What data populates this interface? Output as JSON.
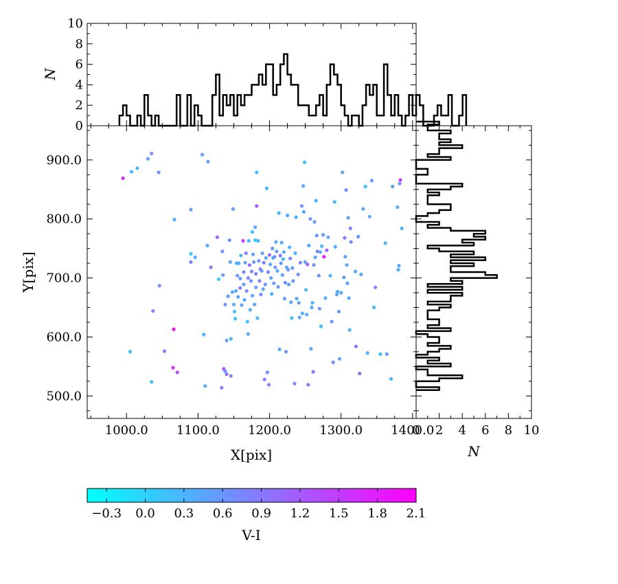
{
  "chart_data": [
    {
      "id": "scatter",
      "type": "scatter",
      "xlabel": "X[pix]",
      "ylabel": "Y[pix]",
      "xlim": [
        945,
        1405
      ],
      "ylim": [
        462,
        958
      ],
      "xticks": [
        "1000.0",
        "1100.0",
        "1200.0",
        "1300.0",
        "1400.0"
      ],
      "yticks": [
        "500.0",
        "600.0",
        "700.0",
        "800.0",
        "900.0"
      ],
      "color_by": "V-I",
      "points": [
        [
          995,
          869,
          1.6
        ],
        [
          1005,
          575,
          0.1
        ],
        [
          1007,
          880,
          0.2
        ],
        [
          1015,
          886,
          0.3
        ],
        [
          1030,
          902,
          0.5
        ],
        [
          1035,
          911,
          0.6
        ],
        [
          1035,
          524,
          0.2
        ],
        [
          1037,
          644,
          0.8
        ],
        [
          1045,
          879,
          0.7
        ],
        [
          1046,
          687,
          0.7
        ],
        [
          1053,
          576,
          0.8
        ],
        [
          1065,
          548,
          1.6
        ],
        [
          1066,
          613,
          2.0
        ],
        [
          1067,
          799,
          0.4
        ],
        [
          1071,
          540,
          1.3
        ],
        [
          1090,
          816,
          0.5
        ],
        [
          1090,
          741,
          0.1
        ],
        [
          1090,
          727,
          0.8
        ],
        [
          1096,
          735,
          0.4
        ],
        [
          1106,
          909,
          0.5
        ],
        [
          1108,
          604,
          0.3
        ],
        [
          1110,
          517,
          0.4
        ],
        [
          1113,
          755,
          0.4
        ],
        [
          1114,
          897,
          0.5
        ],
        [
          1118,
          718,
          0.8
        ],
        [
          1127,
          769,
          1.1
        ],
        [
          1129,
          698,
          0.1
        ],
        [
          1133,
          514,
          0.8
        ],
        [
          1134,
          745,
          0.6
        ],
        [
          1135,
          705,
          0.5
        ],
        [
          1136,
          546,
          1.3
        ],
        [
          1138,
          542,
          0.6
        ],
        [
          1138,
          655,
          0.6
        ],
        [
          1140,
          537,
          1.0
        ],
        [
          1140,
          594,
          0.5
        ],
        [
          1142,
          669,
          0.5
        ],
        [
          1144,
          764,
          0.7
        ],
        [
          1145,
          727,
          0.4
        ],
        [
          1146,
          597,
          0.3
        ],
        [
          1146,
          534,
          0.8
        ],
        [
          1148,
          676,
          0.4
        ],
        [
          1149,
          817,
          0.5
        ],
        [
          1150,
          655,
          0.4
        ],
        [
          1151,
          643,
          0.2
        ],
        [
          1152,
          631,
          0.1
        ],
        [
          1153,
          678,
          0.4
        ],
        [
          1154,
          725,
          0.3
        ],
        [
          1155,
          704,
          0.6
        ],
        [
          1156,
          668,
          0.5
        ],
        [
          1157,
          725,
          0.4
        ],
        [
          1159,
          699,
          0.6
        ],
        [
          1159,
          683,
          0.9
        ],
        [
          1160,
          738,
          0.3
        ],
        [
          1161,
          654,
          0.4
        ],
        [
          1163,
          763,
          1.5
        ],
        [
          1164,
          710,
          0.7
        ],
        [
          1164,
          689,
          0.5
        ],
        [
          1165,
          663,
          0.4
        ],
        [
          1166,
          726,
          0.5
        ],
        [
          1167,
          742,
          0.8
        ],
        [
          1168,
          678,
          0.7
        ],
        [
          1169,
          626,
          0.2
        ],
        [
          1170,
          700,
          0.8
        ],
        [
          1170,
          605,
          0.4
        ],
        [
          1171,
          763,
          0.3
        ],
        [
          1172,
          722,
          1.0
        ],
        [
          1173,
          646,
          0.4
        ],
        [
          1174,
          695,
          0.7
        ],
        [
          1175,
          711,
          0.7
        ],
        [
          1176,
          670,
          0.4
        ],
        [
          1176,
          778,
          0.2
        ],
        [
          1177,
          740,
          0.4
        ],
        [
          1178,
          727,
          0.5
        ],
        [
          1179,
          655,
          0.5
        ],
        [
          1180,
          786,
          0.4
        ],
        [
          1180,
          764,
          0.1
        ],
        [
          1181,
          707,
          0.8
        ],
        [
          1181,
          684,
          0.6
        ],
        [
          1182,
          879,
          0.2
        ],
        [
          1182,
          822,
          1.2
        ],
        [
          1183,
          632,
          0.3
        ],
        [
          1184,
          763,
          0.3
        ],
        [
          1185,
          729,
          0.6
        ],
        [
          1186,
          695,
          0.8
        ],
        [
          1187,
          715,
          0.8
        ],
        [
          1188,
          672,
          0.7
        ],
        [
          1189,
          712,
          0.6
        ],
        [
          1190,
          742,
          0.5
        ],
        [
          1191,
          681,
          0.5
        ],
        [
          1192,
          726,
          0.8
        ],
        [
          1193,
          528,
          0.9
        ],
        [
          1194,
          689,
          0.6
        ],
        [
          1195,
          734,
          0.4
        ],
        [
          1196,
          852,
          0.3
        ],
        [
          1197,
          540,
          0.7
        ],
        [
          1198,
          710,
          0.7
        ],
        [
          1199,
          519,
          0.8
        ],
        [
          1200,
          739,
          1.0
        ],
        [
          1201,
          723,
          0.4
        ],
        [
          1202,
          700,
          0.5
        ],
        [
          1203,
          673,
          0.4
        ],
        [
          1204,
          750,
          0.5
        ],
        [
          1205,
          734,
          0.3
        ],
        [
          1206,
          691,
          0.6
        ],
        [
          1207,
          736,
          0.7
        ],
        [
          1208,
          718,
          0.6
        ],
        [
          1209,
          761,
          0.4
        ],
        [
          1210,
          745,
          0.5
        ],
        [
          1211,
          712,
          0.4
        ],
        [
          1212,
          685,
          0.6
        ],
        [
          1213,
          810,
          0.3
        ],
        [
          1214,
          579,
          0.4
        ],
        [
          1215,
          738,
          0.9
        ],
        [
          1216,
          725,
          0.6
        ],
        [
          1217,
          760,
          0.4
        ],
        [
          1218,
          705,
          0.5
        ],
        [
          1219,
          732,
          0.3
        ],
        [
          1220,
          744,
          0.4
        ],
        [
          1221,
          665,
          0.5
        ],
        [
          1222,
          692,
          0.7
        ],
        [
          1223,
          575,
          0.6
        ],
        [
          1224,
          718,
          0.5
        ],
        [
          1225,
          806,
          0.4
        ],
        [
          1226,
          714,
          0.6
        ],
        [
          1227,
          689,
          0.5
        ],
        [
          1228,
          752,
          0.4
        ],
        [
          1229,
          733,
          0.8
        ],
        [
          1230,
          659,
          0.5
        ],
        [
          1231,
          632,
          0.2
        ],
        [
          1232,
          717,
          0.5
        ],
        [
          1233,
          695,
          0.6
        ],
        [
          1235,
          521,
          0.8
        ],
        [
          1236,
          742,
          0.3
        ],
        [
          1237,
          803,
          0.4
        ],
        [
          1238,
          665,
          0.4
        ],
        [
          1240,
          706,
          0.6
        ],
        [
          1241,
          658,
          0.5
        ],
        [
          1242,
          633,
          0.4
        ],
        [
          1243,
          726,
          0.7
        ],
        [
          1245,
          822,
          0.6
        ],
        [
          1246,
          640,
          0.3
        ],
        [
          1247,
          856,
          0.4
        ],
        [
          1248,
          812,
          0.4
        ],
        [
          1249,
          896,
          0.2
        ],
        [
          1250,
          727,
          0.5
        ],
        [
          1251,
          680,
          0.3
        ],
        [
          1252,
          638,
          0.4
        ],
        [
          1253,
          723,
          1.1
        ],
        [
          1254,
          519,
          0.9
        ],
        [
          1255,
          755,
          0.4
        ],
        [
          1257,
          800,
          0.6
        ],
        [
          1258,
          580,
          0.5
        ],
        [
          1259,
          650,
          0.4
        ],
        [
          1260,
          658,
          0.3
        ],
        [
          1261,
          541,
          0.9
        ],
        [
          1262,
          722,
          0.7
        ],
        [
          1263,
          795,
          0.5
        ],
        [
          1264,
          735,
          0.4
        ],
        [
          1265,
          831,
          0.3
        ],
        [
          1266,
          772,
          0.6
        ],
        [
          1267,
          745,
          0.8
        ],
        [
          1269,
          704,
          0.7
        ],
        [
          1270,
          648,
          0.6
        ],
        [
          1271,
          744,
          0.4
        ],
        [
          1272,
          618,
          0.2
        ],
        [
          1273,
          754,
          0.3
        ],
        [
          1275,
          773,
          0.5
        ],
        [
          1276,
          736,
          1.8
        ],
        [
          1278,
          666,
          0.4
        ],
        [
          1280,
          747,
          1.1
        ],
        [
          1282,
          769,
          0.5
        ],
        [
          1285,
          704,
          0.3
        ],
        [
          1287,
          626,
          0.6
        ],
        [
          1289,
          557,
          0.7
        ],
        [
          1291,
          829,
          0.3
        ],
        [
          1292,
          753,
          0.4
        ],
        [
          1294,
          672,
          0.5
        ],
        [
          1295,
          677,
          0.3
        ],
        [
          1297,
          643,
          0.6
        ],
        [
          1298,
          563,
          0.4
        ],
        [
          1300,
          675,
          0.4
        ],
        [
          1302,
          879,
          0.4
        ],
        [
          1304,
          701,
          0.6
        ],
        [
          1305,
          768,
          0.9
        ],
        [
          1306,
          736,
          0.5
        ],
        [
          1307,
          849,
          0.7
        ],
        [
          1308,
          722,
          0.4
        ],
        [
          1309,
          691,
          0.5
        ],
        [
          1310,
          802,
          0.5
        ],
        [
          1311,
          666,
          0.4
        ],
        [
          1312,
          612,
          0.3
        ],
        [
          1313,
          784,
          0.8
        ],
        [
          1314,
          761,
          0.7
        ],
        [
          1320,
          711,
          0.4
        ],
        [
          1321,
          584,
          0.9
        ],
        [
          1324,
          770,
          0.6
        ],
        [
          1326,
          538,
          1.0
        ],
        [
          1328,
          706,
          0.4
        ],
        [
          1331,
          817,
          0.4
        ],
        [
          1334,
          855,
          0.2
        ],
        [
          1337,
          573,
          0.4
        ],
        [
          1340,
          804,
          0.4
        ],
        [
          1343,
          865,
          0.6
        ],
        [
          1346,
          650,
          0.3
        ],
        [
          1348,
          684,
          0.8
        ],
        [
          1355,
          571,
          0.2
        ],
        [
          1362,
          759,
          0.3
        ],
        [
          1364,
          571,
          0.5
        ],
        [
          1370,
          529,
          0.3
        ],
        [
          1372,
          855,
          0.5
        ],
        [
          1379,
          820,
          0.4
        ],
        [
          1380,
          714,
          0.3
        ],
        [
          1381,
          721,
          0.4
        ],
        [
          1382,
          860,
          0.6
        ],
        [
          1383,
          866,
          1.5
        ],
        [
          1385,
          784,
          0.3
        ]
      ]
    },
    {
      "id": "top_histogram",
      "type": "bar",
      "ylabel": "N",
      "ylim": [
        0,
        10
      ],
      "yticks": [
        "0",
        "2",
        "4",
        "6",
        "8",
        "10"
      ],
      "bin_start": 990,
      "bin_width": 5,
      "counts": [
        1,
        2,
        1,
        0,
        0,
        1,
        0,
        3,
        1,
        0,
        1,
        0,
        0,
        0,
        0,
        0,
        3,
        0,
        0,
        3,
        0,
        2,
        1,
        0,
        0,
        0,
        3,
        5,
        1,
        3,
        2,
        3,
        1,
        3,
        2,
        3,
        3,
        4,
        4,
        5,
        4,
        6,
        6,
        3,
        4,
        6,
        7,
        5,
        4,
        4,
        2,
        2,
        2,
        1,
        1,
        2,
        3,
        1,
        4,
        6,
        5,
        4,
        2,
        1,
        0,
        1,
        1,
        0,
        2,
        4,
        3,
        4,
        1,
        1,
        6,
        3,
        1,
        3,
        1,
        0,
        1,
        3,
        1,
        3,
        2,
        0,
        0,
        0,
        1,
        2,
        1,
        1,
        3,
        0,
        0,
        1,
        3
      ]
    },
    {
      "id": "right_histogram",
      "type": "bar",
      "orientation": "horizontal",
      "xlabel": "N",
      "xlim": [
        0,
        10
      ],
      "xticks": [
        "0",
        "2",
        "4",
        "6",
        "8",
        "10"
      ],
      "bin_start": 510,
      "bin_width": 5,
      "counts": [
        2,
        0,
        0,
        2,
        4,
        1,
        1,
        0,
        3,
        1,
        2,
        0,
        1,
        2,
        3,
        1,
        2,
        2,
        1,
        0,
        3,
        1,
        2,
        2,
        1,
        1,
        1,
        2,
        3,
        1,
        3,
        3,
        4,
        1,
        4,
        1,
        4,
        3,
        7,
        6,
        3,
        3,
        5,
        3,
        6,
        3,
        5,
        2,
        1,
        5,
        4,
        6,
        5,
        6,
        3,
        1,
        2,
        0,
        0,
        1,
        2,
        3,
        3,
        1,
        1,
        1,
        2,
        1,
        3,
        4,
        0,
        0,
        0,
        1,
        1,
        0,
        0,
        0,
        3,
        1,
        2,
        2,
        4,
        2,
        3,
        2,
        2,
        3,
        1,
        1,
        2
      ]
    }
  ],
  "colorbar": {
    "label": "V-I",
    "range": [
      -0.45,
      2.1
    ],
    "ticks": [
      "−0.3",
      "0.0",
      "0.3",
      "0.6",
      "0.9",
      "1.2",
      "1.5",
      "1.8",
      "2.1"
    ],
    "color_low": "#00ffff",
    "color_high": "#ff00ff"
  }
}
